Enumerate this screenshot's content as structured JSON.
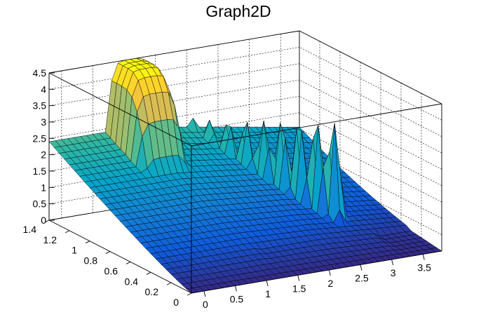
{
  "chart_data": {
    "type": "surface",
    "title": "Graph2D",
    "x_range": [
      -0.2,
      3.8
    ],
    "y_range": [
      0,
      1.4
    ],
    "z_range": [
      0,
      4.5
    ],
    "x_ticks": [
      "0",
      "0.5",
      "1",
      "1.5",
      "2",
      "2.5",
      "3",
      "3.5"
    ],
    "y_ticks": [
      "0",
      "0.2",
      "0.4",
      "0.6",
      "0.8",
      "1",
      "1.2",
      "1.4"
    ],
    "z_ticks": [
      "0",
      "0.5",
      "1",
      "1.5",
      "2",
      "2.5",
      "3",
      "3.5",
      "4",
      "4.5"
    ],
    "grid": true,
    "colormap": [
      "#352a87",
      "#0f5cdd",
      "#1481d6",
      "#06a4ca",
      "#2eb7a4",
      "#87bf77",
      "#d1bb59",
      "#fec832",
      "#f9fb0e"
    ],
    "grid_size": [
      40,
      28
    ],
    "features": [
      {
        "name": "plateau",
        "x": [
          0.6,
          1.6
        ],
        "y": [
          0.95,
          1.4
        ],
        "z": 4.5
      },
      {
        "name": "ridge",
        "x0": 2.1,
        "y0": 1.4,
        "x1": 2.9,
        "y1": 0.5,
        "z": 3.4
      },
      {
        "name": "base-level",
        "y": 1.4,
        "z": 2.4
      }
    ]
  }
}
